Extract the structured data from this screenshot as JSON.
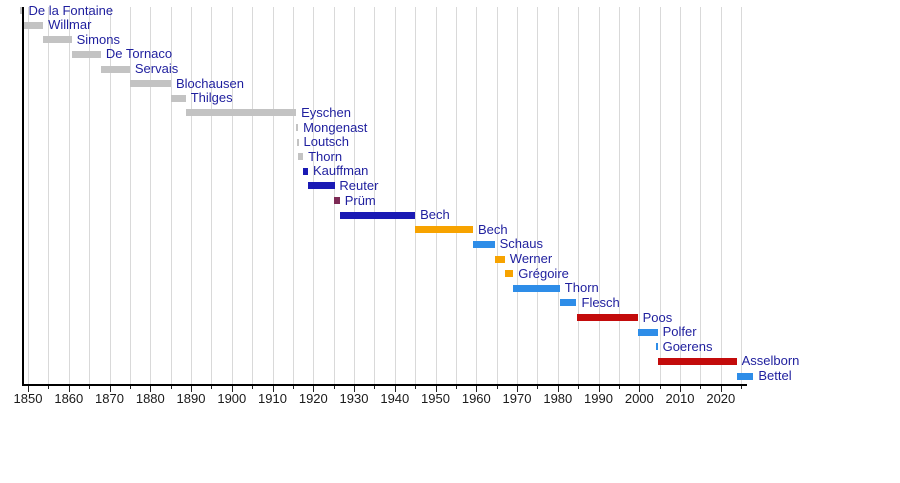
{
  "page": {
    "background": "#ffffff"
  },
  "chart_data": {
    "type": "timeline",
    "title": "",
    "description": "Horizontal timeline of successive Luxembourg ministers, bars colored by party, years 1848-2028",
    "axis": {
      "unit": "year",
      "min_year": 1848,
      "max_year": 2026.5,
      "grid_start": 1850,
      "grid_end": 2025,
      "grid_step": 5,
      "label_years": [
        "1850",
        "1860",
        "1870",
        "1880",
        "1890",
        "1900",
        "1910",
        "1920",
        "1930",
        "1940",
        "1950",
        "1960",
        "1970",
        "1980",
        "1990",
        "2000",
        "2010",
        "2020"
      ],
      "grid_on": true,
      "legend": "none"
    },
    "palette": {
      "gray": "#c3c3c3",
      "darkblue": "#1a1ab4",
      "orange": "#f7a300",
      "lightblue": "#2e8de8",
      "red": "#c30b0b",
      "claret": "#7d2a55",
      "label_text": "#1f1f9e",
      "axis_text": "#1a1a1a",
      "gridline": "#d9d9d9",
      "axis_line": "#000000"
    },
    "entries": [
      {
        "label": "De la Fontaine",
        "start": 1848.0,
        "end": 1848.9,
        "color": "gray"
      },
      {
        "label": "Willmar",
        "start": 1848.9,
        "end": 1853.7,
        "color": "gray"
      },
      {
        "label": "Simons",
        "start": 1853.7,
        "end": 1860.7,
        "color": "gray"
      },
      {
        "label": "De Tornaco",
        "start": 1860.7,
        "end": 1867.9,
        "color": "gray"
      },
      {
        "label": "Servais",
        "start": 1867.9,
        "end": 1875.0,
        "color": "gray"
      },
      {
        "label": "Blochausen",
        "start": 1875.0,
        "end": 1885.1,
        "color": "gray"
      },
      {
        "label": "Thilges",
        "start": 1885.1,
        "end": 1888.7,
        "color": "gray"
      },
      {
        "label": "Eyschen",
        "start": 1888.7,
        "end": 1915.8,
        "color": "gray"
      },
      {
        "label": "Mongenast",
        "start": 1915.8,
        "end": 1915.9,
        "color": "gray"
      },
      {
        "label": "Loutsch",
        "start": 1915.9,
        "end": 1916.2,
        "color": "gray"
      },
      {
        "label": "Thorn",
        "start": 1916.2,
        "end": 1917.5,
        "color": "gray"
      },
      {
        "label": "Kauffman",
        "start": 1917.5,
        "end": 1918.7,
        "color": "darkblue"
      },
      {
        "label": "Reuter",
        "start": 1918.7,
        "end": 1925.2,
        "color": "darkblue"
      },
      {
        "label": "Prüm",
        "start": 1925.2,
        "end": 1926.5,
        "color": "claret"
      },
      {
        "label": "Bech",
        "start": 1926.5,
        "end": 1945.0,
        "color": "darkblue"
      },
      {
        "label": "Bech",
        "start": 1945.0,
        "end": 1959.2,
        "color": "orange"
      },
      {
        "label": "Schaus",
        "start": 1959.2,
        "end": 1964.5,
        "color": "lightblue"
      },
      {
        "label": "Werner",
        "start": 1964.5,
        "end": 1967.0,
        "color": "orange"
      },
      {
        "label": "Grégoire",
        "start": 1967.0,
        "end": 1969.1,
        "color": "orange"
      },
      {
        "label": "Thorn",
        "start": 1969.1,
        "end": 1980.5,
        "color": "lightblue"
      },
      {
        "label": "Flesch",
        "start": 1980.5,
        "end": 1984.6,
        "color": "lightblue"
      },
      {
        "label": "Poos",
        "start": 1984.6,
        "end": 1999.6,
        "color": "red"
      },
      {
        "label": "Polfer",
        "start": 1999.6,
        "end": 2004.5,
        "color": "lightblue"
      },
      {
        "label": "Goerens",
        "start": 2004.0,
        "end": 2004.4,
        "color": "lightblue"
      },
      {
        "label": "Asselborn",
        "start": 2004.6,
        "end": 2023.9,
        "color": "red"
      },
      {
        "label": "Bettel",
        "start": 2023.9,
        "end": 2028.0,
        "color": "lightblue"
      }
    ]
  }
}
